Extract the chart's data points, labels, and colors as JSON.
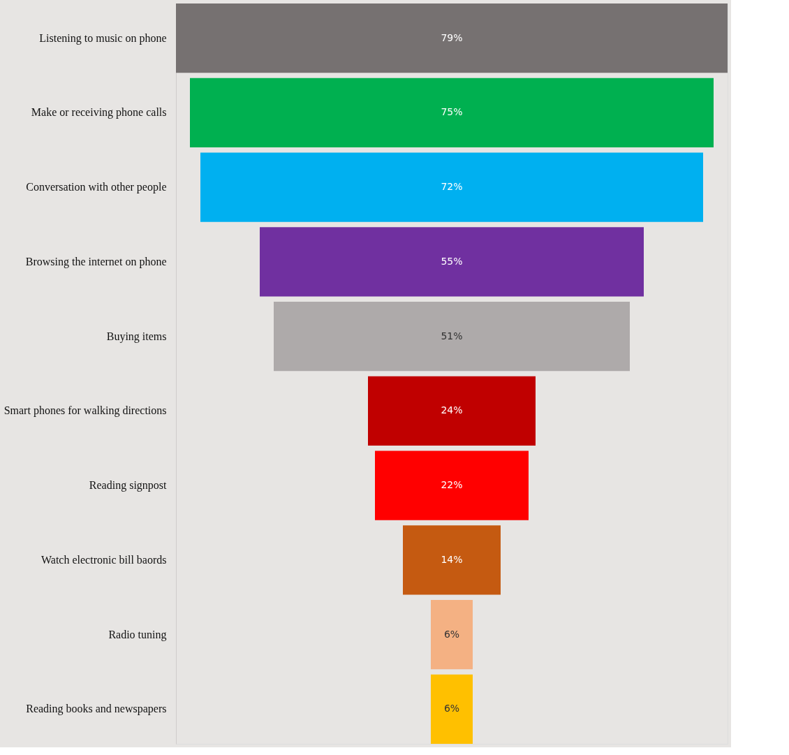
{
  "chart_data": {
    "type": "other",
    "categories": [
      "Listening to music on phone",
      "Make or receiving phone calls",
      "Conversation with other people",
      "Browsing the internet on phone",
      "Buying items",
      "Smart phones for walking directions",
      "Reading signpost",
      "Watch electronic bill baords",
      "Radio tuning",
      "Reading books and newspapers"
    ],
    "values": [
      79,
      75,
      72,
      55,
      51,
      24,
      22,
      14,
      6,
      6
    ],
    "value_labels": [
      "79%",
      "75%",
      "72%",
      "55%",
      "51%",
      "24%",
      "22%",
      "14%",
      "6%",
      "6%"
    ],
    "colors": [
      "#767171",
      "#00b050",
      "#00b0f0",
      "#7030a0",
      "#aeaaaa",
      "#c00000",
      "#ff0000",
      "#c55a11",
      "#f4b183",
      "#ffc000"
    ],
    "data_labels": false
  }
}
